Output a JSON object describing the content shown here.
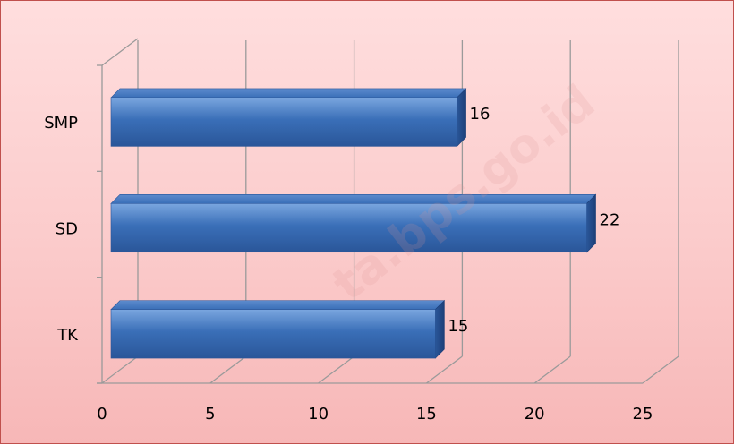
{
  "chart_data": {
    "type": "bar",
    "orientation": "horizontal",
    "style": "3d",
    "categories": [
      "TK",
      "SD",
      "SMP"
    ],
    "values": [
      15,
      22,
      16
    ],
    "data_labels": [
      "15",
      "22",
      "16"
    ],
    "xticks": [
      "0",
      "5",
      "10",
      "15",
      "20",
      "25"
    ],
    "xlim": [
      0,
      25
    ],
    "grid": true,
    "legend": "none",
    "colors": {
      "bar": "#3a6fb8",
      "bar_light": "#6d9ad6",
      "bar_dark": "#1c3f78",
      "grid": "#9a9a9a",
      "border": "#c0504d"
    }
  },
  "watermark": "ta.bps.go.id"
}
